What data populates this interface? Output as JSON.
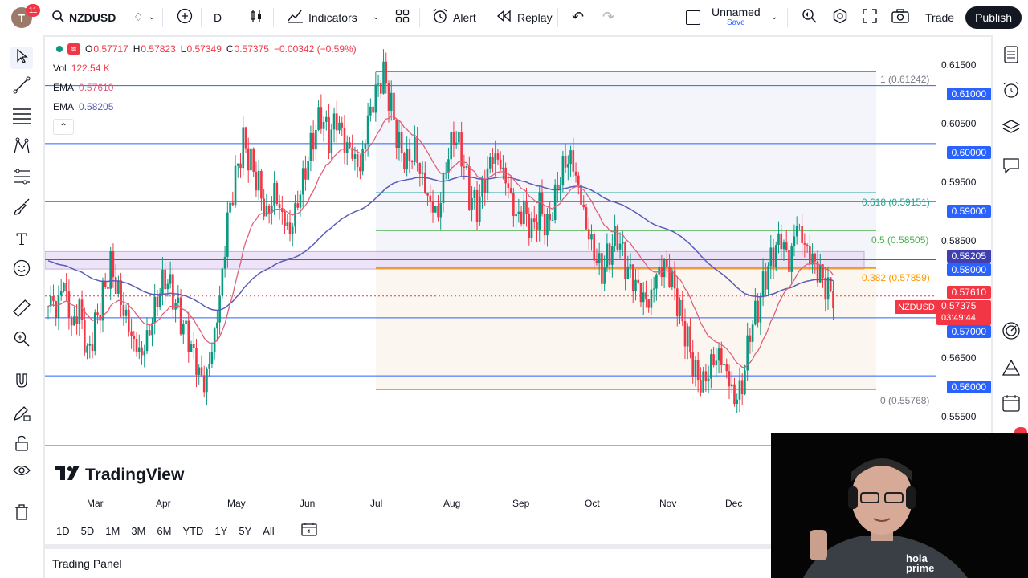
{
  "topbar": {
    "avatar_letter": "T",
    "notif_count": "11",
    "symbol": "NZDUSD",
    "interval": "D",
    "indicators_label": "Indicators",
    "alert_label": "Alert",
    "replay_label": "Replay",
    "layout_name": "Unnamed",
    "layout_save": "Save",
    "trade_label": "Trade",
    "publish_label": "Publish"
  },
  "legend": {
    "ohlc": {
      "o_label": "O",
      "o": "0.57717",
      "h_label": "H",
      "h": "0.57823",
      "l_label": "L",
      "l": "0.57349",
      "c_label": "C",
      "c": "0.57375",
      "chg": "−0.00342 (−0.59%)"
    },
    "vol_label": "Vol",
    "vol": "122.54 K",
    "ema1_label": "EMA",
    "ema1": "0.57610",
    "ema2_label": "EMA",
    "ema2": "0.58205",
    "collapse_glyph": "⌃"
  },
  "price_axis": [
    "0.61500",
    "0.61000",
    "0.60500",
    "0.60000",
    "0.59500",
    "0.59000",
    "0.58500",
    "0.58205",
    "0.58000",
    "0.57610",
    "0.57375",
    "0.57000",
    "0.56500",
    "0.56000",
    "0.55500"
  ],
  "price_tags": {
    "p61000": "0.61000",
    "p60000": "0.60000",
    "p59000": "0.59000",
    "ema2": "0.58205",
    "p58000": "0.58000",
    "ema1": "0.57610",
    "sym_name": "NZDUSD",
    "last": "0.57375",
    "countdown": "03:49:44",
    "p57000": "0.57000",
    "p56000": "0.56000"
  },
  "fib": {
    "l1": "1 (0.61242)",
    "l618": "0.618 (0.59151)",
    "l5": "0.5 (0.58505)",
    "l382": "0.382 (0.57859)",
    "l0": "0 (0.55768)"
  },
  "time_axis": [
    "Mar",
    "Apr",
    "May",
    "Jun",
    "Jul",
    "Aug",
    "Sep",
    "Oct",
    "Nov",
    "Dec"
  ],
  "ranges": [
    "1D",
    "5D",
    "1M",
    "3M",
    "6M",
    "YTD",
    "1Y",
    "5Y",
    "All"
  ],
  "watermark": "TradingView",
  "bottom_panel": "Trading Panel",
  "webcam_brand": "hola prime",
  "colors": {
    "up": "#089981",
    "down": "#f23645",
    "ema_fast": "#e0607a",
    "ema_slow": "#5b5bb8",
    "hline": "#2962ff",
    "fib_618": "#26a69a",
    "fib_5": "#4caf50",
    "fib_382": "#ff9800",
    "fib_grey": "#787b86"
  },
  "chart_data": {
    "type": "candlestick",
    "symbol": "NZDUSD",
    "interval": "D",
    "ylim": [
      0.552,
      0.617
    ],
    "months": [
      "Mar",
      "Apr",
      "May",
      "Jun",
      "Jul",
      "Aug",
      "Sep",
      "Oct",
      "Nov",
      "Dec"
    ],
    "close_path": [
      0.572,
      0.569,
      0.574,
      0.566,
      0.57,
      0.562,
      0.568,
      0.574,
      0.58,
      0.576,
      0.572,
      0.568,
      0.566,
      0.57,
      0.575,
      0.578,
      0.574,
      0.569,
      0.565,
      0.56,
      0.556,
      0.562,
      0.571,
      0.585,
      0.593,
      0.6,
      0.597,
      0.594,
      0.589,
      0.594,
      0.59,
      0.587,
      0.592,
      0.597,
      0.602,
      0.605,
      0.6,
      0.603,
      0.598,
      0.596,
      0.593,
      0.602,
      0.607,
      0.611,
      0.606,
      0.6,
      0.598,
      0.601,
      0.596,
      0.592,
      0.59,
      0.598,
      0.603,
      0.599,
      0.591,
      0.588,
      0.592,
      0.596,
      0.594,
      0.59,
      0.585,
      0.587,
      0.584,
      0.589,
      0.586,
      0.592,
      0.598,
      0.6,
      0.595,
      0.588,
      0.583,
      0.579,
      0.582,
      0.584,
      0.578,
      0.575,
      0.572,
      0.57,
      0.575,
      0.577,
      0.575,
      0.57,
      0.566,
      0.561,
      0.56,
      0.564,
      0.566,
      0.563,
      0.558,
      0.56,
      0.569,
      0.572,
      0.577,
      0.58,
      0.582,
      0.577,
      0.584,
      0.58,
      0.578,
      0.576,
      0.574
    ],
    "ema_fast": 0.5761,
    "ema_slow": 0.58205,
    "horizontal_levels": [
      0.61,
      0.6,
      0.59,
      0.58,
      0.57,
      0.56
    ],
    "fib_levels": [
      {
        "label": "1",
        "value": 0.61242
      },
      {
        "label": "0.618",
        "value": 0.59151
      },
      {
        "label": "0.5",
        "value": 0.58505
      },
      {
        "label": "0.382",
        "value": 0.57859
      },
      {
        "label": "0",
        "value": 0.55768
      }
    ],
    "last": 0.57375
  }
}
